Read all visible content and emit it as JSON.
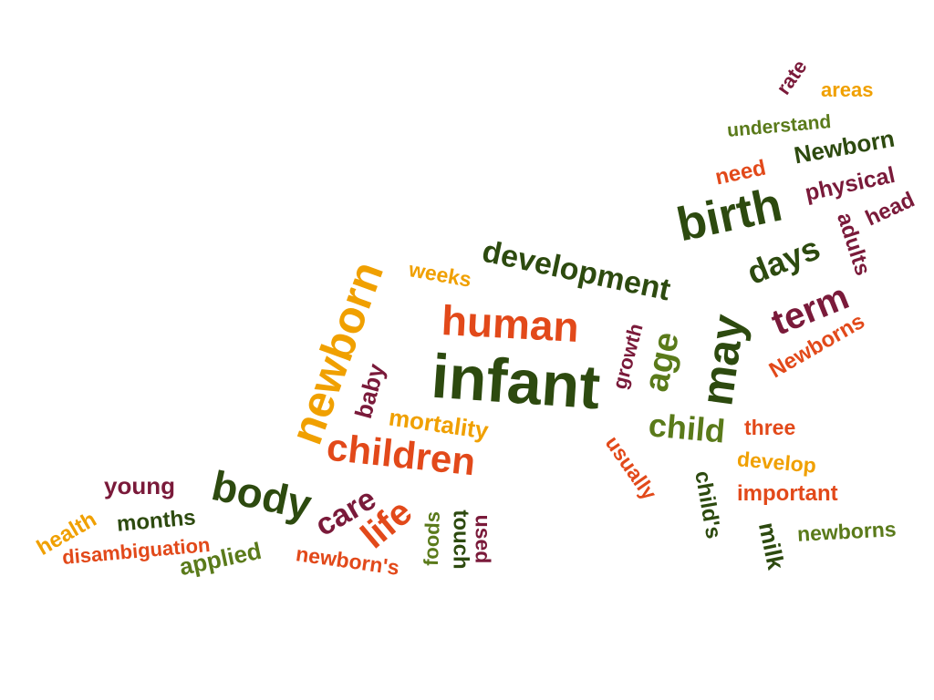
{
  "palette": {
    "dark_green": "#2d4a0f",
    "olive": "#5a7a1a",
    "orange": "#f0a000",
    "red_orange": "#e2491a",
    "maroon": "#7a1a3a"
  },
  "words": [
    "rate",
    "areas",
    "understand",
    "Newborn",
    "need",
    "physical",
    "head",
    "birth",
    "adults",
    "days",
    "term",
    "Newborns",
    "development",
    "weeks",
    "newborn",
    "human",
    "infant",
    "growth",
    "age",
    "may",
    "baby",
    "mortality",
    "child",
    "three",
    "children",
    "usually",
    "develop",
    "body",
    "young",
    "care",
    "life",
    "child's",
    "important",
    "months",
    "health",
    "foods",
    "touch",
    "used",
    "milk",
    "newborns",
    "disambiguation",
    "applied",
    "newborn's"
  ]
}
